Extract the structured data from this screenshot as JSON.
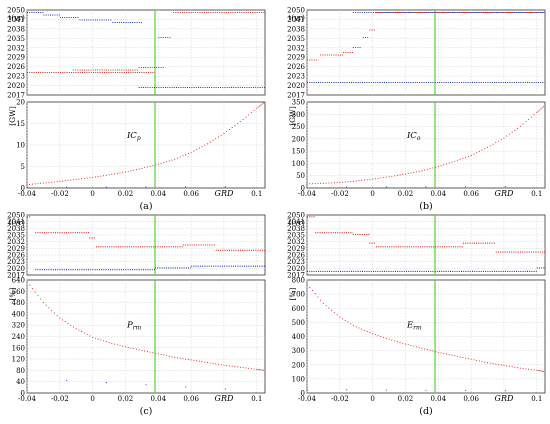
{
  "chart_data": [
    {
      "panel": "(a)",
      "type": "scatter",
      "colors": {
        "red": "#e8201a",
        "blue": "#2233cc",
        "green": "#52d62e"
      },
      "top": {
        "ylabel": "t(yr)",
        "y_ticks": [
          "2017",
          "2020",
          "2023",
          "2026",
          "2029",
          "2032",
          "2035",
          "2038",
          "2041",
          "2050"
        ],
        "ylim": [
          2017,
          2051
        ],
        "series": [
          {
            "color": "red",
            "segments": [
              [
                -0.04,
                0.038,
                2026
              ],
              [
                -0.012,
                0.028,
                2027
              ],
              [
                0.028,
                0.044,
                2028
              ],
              [
                0.04,
                0.048,
                2040
              ],
              [
                0.049,
                0.105,
                2050
              ]
            ]
          },
          {
            "color": "blue",
            "segments": [
              [
                -0.04,
                -0.03,
                2050
              ],
              [
                -0.03,
                -0.02,
                2049
              ],
              [
                -0.02,
                -0.008,
                2048
              ],
              [
                -0.008,
                0.012,
                2047
              ],
              [
                0.012,
                0.03,
                2046
              ],
              [
                0.028,
                0.105,
                2020
              ]
            ]
          }
        ]
      },
      "bottom": {
        "ylabel": "[GW]",
        "y_ticks": [
          "0",
          "5",
          "10",
          "15",
          "20"
        ],
        "ylim": [
          0,
          21
        ],
        "annotation": "IC",
        "annotation_sub": "p",
        "series": [
          {
            "color": "red",
            "x": [
              -0.04,
              -0.03,
              -0.02,
              -0.01,
              0,
              0.01,
              0.02,
              0.03,
              0.04,
              0.05,
              0.06,
              0.07,
              0.08,
              0.09,
              0.1,
              0.105
            ],
            "y": [
              0.8,
              1.2,
              1.6,
              2.1,
              2.6,
              3.2,
              3.9,
              4.8,
              5.8,
              7.0,
              8.7,
              10.8,
              13.3,
              16.2,
              19.5,
              21
            ]
          },
          {
            "color": "blue",
            "x": [
              -0.04,
              0.105
            ],
            "y": [
              0.2,
              0.3
            ]
          }
        ]
      },
      "x_ticks": [
        "-0.04",
        "-0.02",
        "0",
        "0.02",
        "0.04",
        "0.06",
        "GRD",
        "0.1"
      ],
      "green_line_x": 0.038
    },
    {
      "panel": "(b)",
      "type": "scatter",
      "top": {
        "ylabel": "t(yr)",
        "y_ticks": [
          "2017",
          "2020",
          "2023",
          "2026",
          "2029",
          "2032",
          "2035",
          "2038",
          "2041",
          "2050"
        ],
        "ylim": [
          2017,
          2051
        ],
        "series": [
          {
            "color": "red",
            "segments": [
              [
                -0.04,
                -0.033,
                2031
              ],
              [
                -0.032,
                -0.018,
                2033
              ],
              [
                -0.018,
                -0.012,
                2034
              ],
              [
                -0.012,
                -0.007,
                2036
              ],
              [
                -0.006,
                -0.002,
                2040
              ],
              [
                -0.002,
                0.002,
                2043
              ],
              [
                0.002,
                0.105,
                2050
              ]
            ]
          },
          {
            "color": "blue",
            "segments": [
              [
                -0.04,
                0.105,
                2022
              ],
              [
                -0.012,
                0.105,
                2050
              ]
            ]
          }
        ]
      },
      "bottom": {
        "ylabel": "[GW]",
        "y_ticks": [
          "0",
          "50",
          "100",
          "150",
          "200",
          "250",
          "300",
          "350"
        ],
        "ylim": [
          0,
          370
        ],
        "annotation": "IC",
        "annotation_sub": "o",
        "series": [
          {
            "color": "red",
            "x": [
              -0.04,
              -0.03,
              -0.02,
              -0.01,
              0,
              0.01,
              0.02,
              0.03,
              0.04,
              0.05,
              0.06,
              0.07,
              0.08,
              0.09,
              0.1,
              0.105
            ],
            "y": [
              18,
              20,
              24,
              30,
              38,
              48,
              60,
              74,
              92,
              115,
              140,
              175,
              215,
              265,
              325,
              355
            ]
          },
          {
            "color": "blue",
            "x": [
              -0.04,
              0.105
            ],
            "y": [
              4,
              6
            ]
          }
        ]
      },
      "x_ticks": [
        "-0.04",
        "-0.02",
        "0",
        "0.02",
        "0.04",
        "0.06",
        "GRD",
        "0.1"
      ],
      "green_line_x": 0.038
    },
    {
      "panel": "(c)",
      "type": "scatter",
      "top": {
        "ylabel": "t(yr)",
        "y_ticks": [
          "2017",
          "2020",
          "2023",
          "2026",
          "2029",
          "2032",
          "2035",
          "2038",
          "2041",
          "2050"
        ],
        "ylim": [
          2017,
          2051
        ],
        "series": [
          {
            "color": "red",
            "segments": [
              [
                -0.04,
                -0.038,
                2050
              ],
              [
                -0.035,
                -0.002,
                2041
              ],
              [
                -0.002,
                0.002,
                2038
              ],
              [
                0.002,
                0.055,
                2033
              ],
              [
                0.055,
                0.075,
                2034
              ],
              [
                0.075,
                0.105,
                2031
              ]
            ]
          },
          {
            "color": "blue",
            "segments": [
              [
                -0.04,
                -0.038,
                2017
              ],
              [
                -0.035,
                0.038,
                2020
              ],
              [
                0.038,
                0.06,
                2021
              ],
              [
                0.06,
                0.105,
                2022
              ]
            ]
          }
        ]
      },
      "bottom": {
        "ylabel": "[%]",
        "y_ticks": [
          "0",
          "40",
          "80",
          "120",
          "160",
          "240",
          "320",
          "400",
          "480",
          "560",
          "640"
        ],
        "ylim": [
          0,
          650
        ],
        "annotation": "P",
        "annotation_sub": "rm",
        "series": [
          {
            "color": "red",
            "x": [
              -0.04,
              -0.03,
              -0.02,
              -0.01,
              0,
              0.01,
              0.02,
              0.03,
              0.04,
              0.05,
              0.06,
              0.07,
              0.08,
              0.09,
              0.1,
              0.105
            ],
            "y": [
              640,
              520,
              430,
              370,
              320,
              290,
              265,
              245,
              225,
              205,
              190,
              175,
              160,
              148,
              136,
              130
            ]
          },
          {
            "color": "blue",
            "x": [
              -0.04,
              0.105
            ],
            "y": [
              85,
              10
            ]
          }
        ]
      },
      "x_ticks": [
        "-0.04",
        "-0.02",
        "0",
        "0.02",
        "0.04",
        "0.06",
        "GRD",
        "0.1"
      ],
      "green_line_x": 0.038
    },
    {
      "panel": "(d)",
      "type": "scatter",
      "top": {
        "ylabel": "t(yr)",
        "y_ticks": [
          "2017",
          "2020",
          "2023",
          "2026",
          "2029",
          "2032",
          "2035",
          "2038",
          "2041",
          "2050"
        ],
        "ylim": [
          2017,
          2051
        ],
        "series": [
          {
            "color": "red",
            "segments": [
              [
                -0.04,
                -0.035,
                2050
              ],
              [
                -0.035,
                -0.012,
                2041
              ],
              [
                -0.012,
                -0.002,
                2040
              ],
              [
                -0.002,
                0.002,
                2035
              ],
              [
                0.002,
                0.055,
                2033
              ],
              [
                0.055,
                0.075,
                2035
              ],
              [
                0.075,
                0.105,
                2030
              ]
            ]
          },
          {
            "color": "blue",
            "segments": [
              [
                -0.04,
                0.1,
                2019
              ],
              [
                0.1,
                0.105,
                2021
              ]
            ]
          }
        ]
      },
      "bottom": {
        "ylabel": "[%]",
        "y_ticks": [
          "0",
          "100",
          "200",
          "300",
          "400",
          "500",
          "600",
          "700",
          "800"
        ],
        "ylim": [
          0,
          820
        ],
        "annotation": "E",
        "annotation_sub": "rm",
        "series": [
          {
            "color": "red",
            "x": [
              -0.04,
              -0.03,
              -0.02,
              -0.01,
              0,
              0.01,
              0.02,
              0.03,
              0.04,
              0.05,
              0.06,
              0.07,
              0.08,
              0.09,
              0.1,
              0.105
            ],
            "y": [
              790,
              650,
              550,
              480,
              430,
              390,
              355,
              325,
              295,
              270,
              245,
              220,
              200,
              180,
              165,
              155
            ]
          },
          {
            "color": "blue",
            "x": [
              -0.04,
              0.105
            ],
            "y": [
              25,
              15
            ]
          }
        ]
      },
      "x_ticks": [
        "-0.04",
        "-0.02",
        "0",
        "0.02",
        "0.04",
        "0.06",
        "GRD",
        "0.1"
      ],
      "green_line_x": 0.038
    }
  ]
}
